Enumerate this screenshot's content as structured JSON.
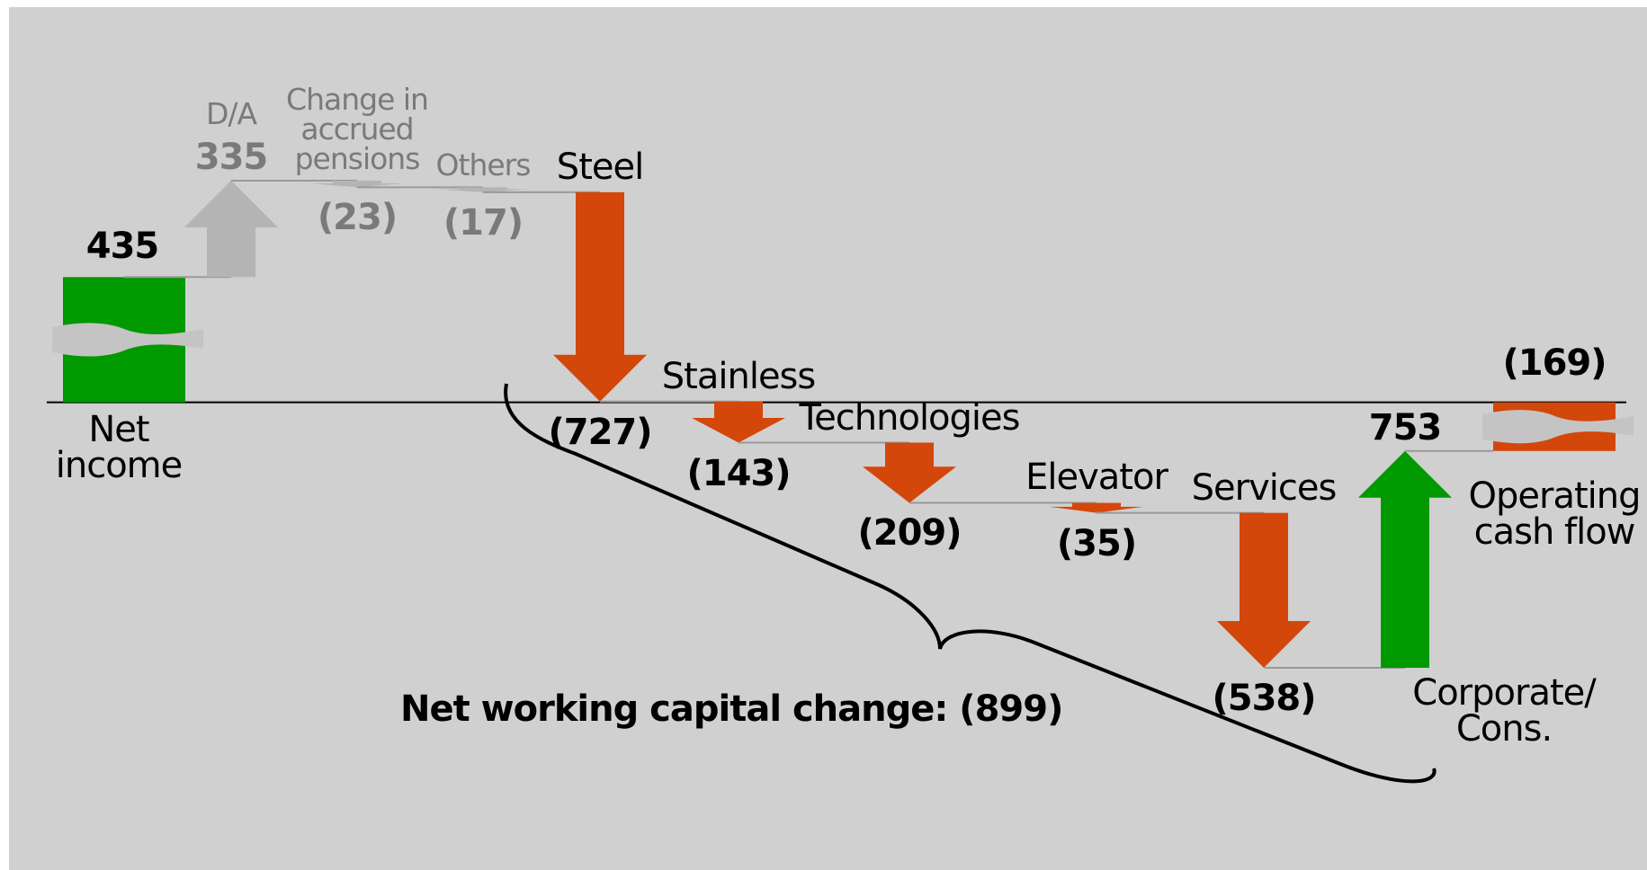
{
  "chart_data": {
    "type": "waterfall",
    "categories": [
      "Net\nincome",
      "D/A",
      "Change in\naccrued\npensions",
      "Others",
      "Steel",
      "Stainless",
      "Technologies",
      "Elevator",
      "Services",
      "Corporate/\nCons.",
      "Operating\ncash flow"
    ],
    "values": [
      435,
      335,
      -23,
      -17,
      -727,
      -143,
      -209,
      -35,
      -538,
      753,
      -169
    ],
    "value_labels": [
      "435",
      "335",
      "(23)",
      "(17)",
      "(727)",
      "(143)",
      "(209)",
      "(35)",
      "(538)",
      "753",
      "(169)"
    ],
    "colors": [
      "#009900",
      "#b4b4b4",
      "#b4b4b4",
      "#b4b4b4",
      "#d4470b",
      "#d4470b",
      "#d4470b",
      "#d4470b",
      "#d4470b",
      "#009900",
      "#d4470b"
    ],
    "label_colors": [
      "#000000",
      "#7a7a7a",
      "#7a7a7a",
      "#7a7a7a",
      "#000000",
      "#000000",
      "#000000",
      "#000000",
      "#000000",
      "#000000",
      "#000000"
    ],
    "annotation": "Net working capital change: (899)"
  }
}
